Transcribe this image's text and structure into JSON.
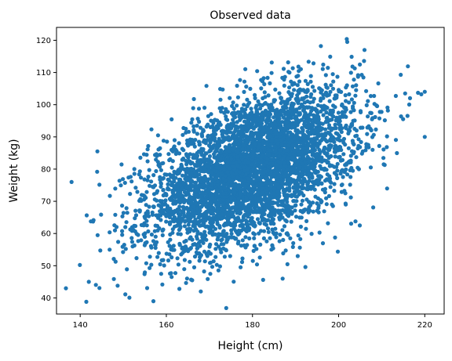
{
  "chart_data": {
    "type": "scatter",
    "title": "Observed data",
    "xlabel": "Height (cm)",
    "ylabel": "Weight (kg)",
    "xlim": [
      134.5,
      224.5
    ],
    "ylim": [
      35,
      124
    ],
    "xticks": [
      140,
      160,
      180,
      200,
      220
    ],
    "yticks": [
      40,
      50,
      60,
      70,
      80,
      90,
      100,
      110,
      120
    ],
    "grid": false,
    "legend": "none",
    "point_color": "#1f77b4",
    "distribution": {
      "description": "bivariate normal cloud, several thousand points",
      "x_mean": 180,
      "x_std": 12,
      "y_mean": 80,
      "y_std": 12,
      "correlation": 0.5
    },
    "highlighted_outliers": [
      {
        "x": 138,
        "y": 76
      },
      {
        "x": 157,
        "y": 39
      },
      {
        "x": 202,
        "y": 119.5
      },
      {
        "x": 220,
        "y": 104
      },
      {
        "x": 220,
        "y": 90
      },
      {
        "x": 142,
        "y": 45
      },
      {
        "x": 168,
        "y": 42
      },
      {
        "x": 206,
        "y": 117
      },
      {
        "x": 187,
        "y": 46
      },
      {
        "x": 144,
        "y": 85.5
      }
    ]
  }
}
